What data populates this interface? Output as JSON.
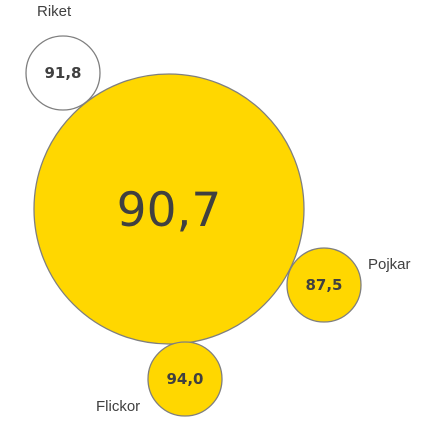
{
  "chart_data": {
    "type": "bubble",
    "colors": {
      "fill_yellow": "#FFD700",
      "fill_white": "#FFFFFF",
      "stroke": "#7F7F7F",
      "text": "#404040"
    },
    "bubbles": [
      {
        "name": "main",
        "label": "",
        "value": 90.7,
        "value_text": "90,7",
        "fill": "yellow"
      },
      {
        "name": "riket",
        "label": "Riket",
        "value": 91.8,
        "value_text": "91,8",
        "fill": "white"
      },
      {
        "name": "pojkar",
        "label": "Pojkar",
        "value": 87.5,
        "value_text": "87,5",
        "fill": "yellow"
      },
      {
        "name": "flickor",
        "label": "Flickor",
        "value": 94.0,
        "value_text": "94,0",
        "fill": "yellow"
      }
    ]
  }
}
